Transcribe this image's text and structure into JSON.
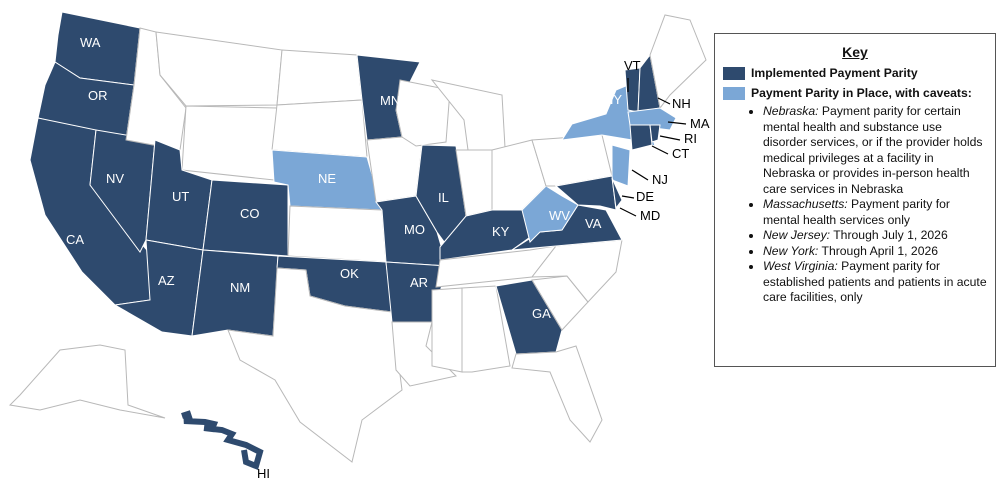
{
  "colors": {
    "implemented": "#2e4a6e",
    "caveats": "#7ba7d6",
    "none": "#ffffff",
    "border": "#b8b8b8"
  },
  "states": {
    "implemented": [
      "WA",
      "OR",
      "CA",
      "NV",
      "UT",
      "AZ",
      "CO",
      "NM",
      "MN",
      "MO",
      "AR",
      "OK",
      "IL",
      "KY",
      "VA",
      "GA",
      "VT",
      "NH",
      "CT",
      "RI",
      "DE",
      "MD",
      "HI"
    ],
    "caveats": [
      "NE",
      "NY",
      "MA",
      "NJ",
      "WV"
    ]
  },
  "labels": [
    "WA",
    "OR",
    "CA",
    "NV",
    "UT",
    "AZ",
    "CO",
    "NM",
    "MN",
    "MO",
    "AR",
    "OK",
    "IL",
    "KY",
    "VA",
    "GA",
    "NE",
    "NY",
    "WV",
    "VT",
    "NH",
    "MA",
    "RI",
    "CT",
    "NJ",
    "DE",
    "MD",
    "HI"
  ],
  "key": {
    "title": "Key",
    "implemented_label": "Implemented Payment Parity",
    "caveats_label": "Payment Parity in Place, with caveats:",
    "caveats": [
      {
        "state": "Nebraska:",
        "text": " Payment parity for certain mental health and substance use disorder services, or if the provider holds medical privileges at a facility in Nebraska or provides in-person health care services in Nebraska"
      },
      {
        "state": "Massachusetts:",
        "text": " Payment parity for mental health services only"
      },
      {
        "state": "New Jersey:",
        "text": " Through July 1, 2026"
      },
      {
        "state": "New York:",
        "text": " Through April 1, 2026"
      },
      {
        "state": "West Virginia:",
        "text": " Payment parity for established patients and patients in acute care facilities, only"
      }
    ]
  }
}
